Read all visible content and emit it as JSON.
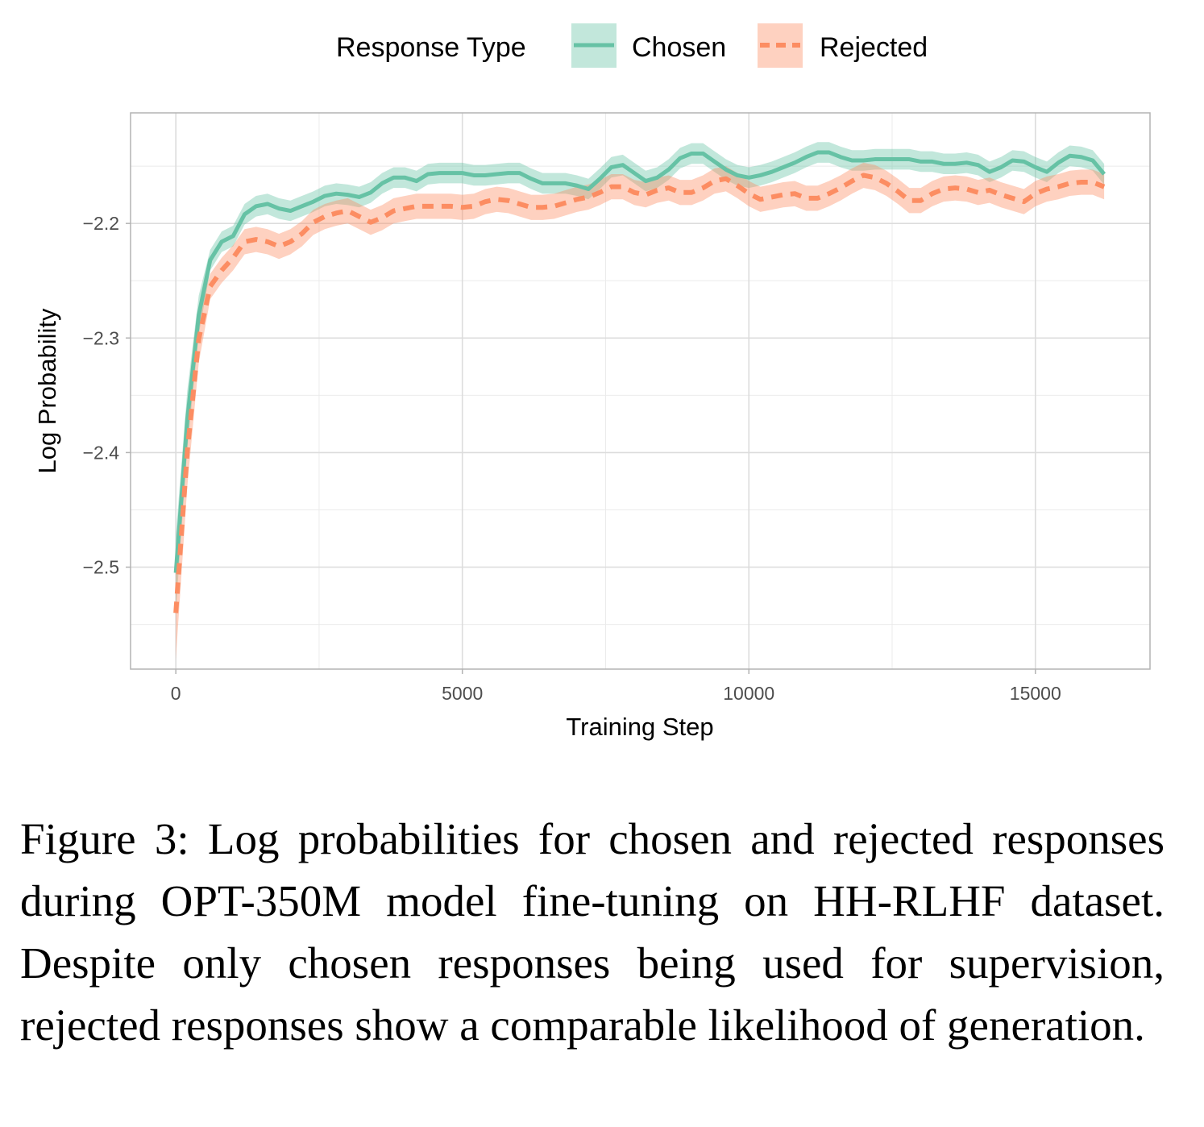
{
  "legend": {
    "title": "Response Type",
    "items": [
      "Chosen",
      "Rejected"
    ]
  },
  "colors": {
    "chosen": "#66c2a5",
    "rejected": "#fc8d62"
  },
  "chart_data": {
    "type": "line",
    "title": "",
    "xlabel": "Training Step",
    "ylabel": "Log Probability",
    "xlim": [
      -790,
      17000
    ],
    "ylim": [
      -2.589,
      -2.1035
    ],
    "xticks": [
      0,
      5000,
      10000,
      15000
    ],
    "xtick_labels": [
      "0",
      "5000",
      "10000",
      "15000"
    ],
    "yticks": [
      -2.5,
      -2.4,
      -2.3,
      -2.2
    ],
    "ytick_labels": [
      "−2.5",
      "−2.4",
      "−2.3",
      "−2.2"
    ],
    "grid": true,
    "legend_position": "top",
    "x_step": 200,
    "series": [
      {
        "name": "Chosen",
        "style": "solid",
        "ci_halfwidth": 0.009,
        "values": [
          -2.505,
          -2.371,
          -2.28,
          -2.232,
          -2.216,
          -2.211,
          -2.192,
          -2.185,
          -2.183,
          -2.187,
          -2.189,
          -2.185,
          -2.181,
          -2.176,
          -2.174,
          -2.175,
          -2.177,
          -2.173,
          -2.165,
          -2.16,
          -2.16,
          -2.163,
          -2.157,
          -2.156,
          -2.156,
          -2.156,
          -2.158,
          -2.158,
          -2.157,
          -2.156,
          -2.156,
          -2.161,
          -2.165,
          -2.165,
          -2.165,
          -2.167,
          -2.17,
          -2.161,
          -2.151,
          -2.149,
          -2.156,
          -2.163,
          -2.16,
          -2.153,
          -2.143,
          -2.139,
          -2.139,
          -2.146,
          -2.153,
          -2.158,
          -2.16,
          -2.158,
          -2.155,
          -2.151,
          -2.147,
          -2.142,
          -2.138,
          -2.138,
          -2.142,
          -2.145,
          -2.145,
          -2.144,
          -2.144,
          -2.144,
          -2.144,
          -2.146,
          -2.146,
          -2.148,
          -2.148,
          -2.147,
          -2.149,
          -2.155,
          -2.151,
          -2.145,
          -2.146,
          -2.151,
          -2.155,
          -2.147,
          -2.141,
          -2.142,
          -2.145,
          -2.157
        ]
      },
      {
        "name": "Rejected",
        "style": "dashed",
        "ci_halfwidth": 0.011,
        "values": [
          -2.54,
          -2.399,
          -2.301,
          -2.255,
          -2.241,
          -2.23,
          -2.216,
          -2.214,
          -2.216,
          -2.22,
          -2.216,
          -2.209,
          -2.199,
          -2.194,
          -2.191,
          -2.189,
          -2.194,
          -2.199,
          -2.195,
          -2.189,
          -2.187,
          -2.185,
          -2.185,
          -2.185,
          -2.185,
          -2.186,
          -2.185,
          -2.181,
          -2.179,
          -2.18,
          -2.183,
          -2.186,
          -2.186,
          -2.185,
          -2.182,
          -2.179,
          -2.177,
          -2.173,
          -2.168,
          -2.168,
          -2.173,
          -2.175,
          -2.171,
          -2.169,
          -2.173,
          -2.173,
          -2.169,
          -2.163,
          -2.161,
          -2.167,
          -2.174,
          -2.179,
          -2.177,
          -2.175,
          -2.174,
          -2.178,
          -2.178,
          -2.174,
          -2.169,
          -2.163,
          -2.158,
          -2.16,
          -2.165,
          -2.172,
          -2.18,
          -2.18,
          -2.174,
          -2.17,
          -2.169,
          -2.17,
          -2.173,
          -2.171,
          -2.175,
          -2.178,
          -2.181,
          -2.174,
          -2.17,
          -2.168,
          -2.165,
          -2.164,
          -2.164,
          -2.168
        ]
      }
    ]
  },
  "caption": "Figure 3:  Log probabilities for chosen and rejected responses during OPT-350M model fine-tuning on HH-RLHF dataset.  Despite only chosen responses being used for supervision, rejected responses show a comparable likelihood of generation."
}
